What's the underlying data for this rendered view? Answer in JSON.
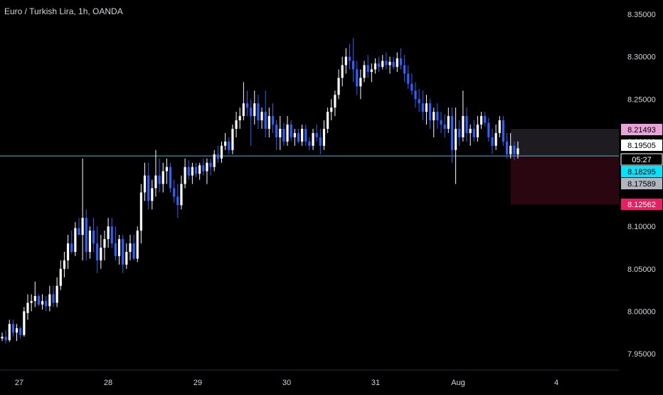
{
  "header": {
    "title": "Euro / Turkish Lira, 1h, OANDA"
  },
  "colors": {
    "background": "#000000",
    "up_candle": "#ffffff",
    "down_candle": "#2962ff",
    "horizontal_line": "#26c6da",
    "zone_upper": "#1e1b21",
    "zone_lower": "#2a0610",
    "tag_pink": "#e8a3d8",
    "tag_white": "#ffffff",
    "tag_cyan": "#00e5ff",
    "tag_gray": "#b2b5be",
    "tag_red": "#e91e63"
  },
  "chart_data": {
    "type": "candlestick",
    "title": "Euro / Turkish Lira, 1h, OANDA",
    "ylim": [
      7.92,
      8.36
    ],
    "xlim": [
      26.95,
      4.55
    ],
    "x_ticks": [
      "27",
      "28",
      "29",
      "30",
      "31",
      "Aug",
      "4"
    ],
    "y_ticks": [
      "8.35000",
      "8.30000",
      "8.25000",
      "8.20000",
      "8.15000",
      "8.10000",
      "8.05000",
      "8.00000",
      "7.95000"
    ],
    "y_tick_values": [
      8.35,
      8.3,
      8.25,
      8.2,
      8.15,
      8.1,
      8.05,
      8.0,
      7.95
    ],
    "horizontal_line": 8.183,
    "price_labels": [
      {
        "text": "8.21493",
        "value": 8.21493,
        "style": "pink"
      },
      {
        "text": "8.19505",
        "value": 8.19505,
        "style": "white"
      },
      {
        "text": "05:27",
        "value": 8.1835,
        "style": "white-sub"
      },
      {
        "text": "8.18295",
        "value": 8.18295,
        "style": "cyan"
      },
      {
        "text": "8.17589",
        "value": 8.17589,
        "style": "gray"
      },
      {
        "text": "8.12562",
        "value": 8.12562,
        "style": "red"
      }
    ],
    "zones": [
      {
        "name": "target",
        "top": 8.21493,
        "bottom": 8.18295
      },
      {
        "name": "stop",
        "top": 8.18295,
        "bottom": 8.12562
      }
    ],
    "candles": [
      [
        7.968,
        7.975,
        7.965,
        7.97
      ],
      [
        7.97,
        7.978,
        7.962,
        7.966
      ],
      [
        7.966,
        7.99,
        7.964,
        7.985
      ],
      [
        7.985,
        7.99,
        7.97,
        7.975
      ],
      [
        7.975,
        7.985,
        7.965,
        7.98
      ],
      [
        7.98,
        7.982,
        7.968,
        7.972
      ],
      [
        7.972,
        8.005,
        7.97,
        8.0
      ],
      [
        7.998,
        8.02,
        7.99,
        8.01
      ],
      [
        8.01,
        8.02,
        8.0,
        8.012
      ],
      [
        8.012,
        8.035,
        8.005,
        8.018
      ],
      [
        8.018,
        8.02,
        8.006,
        8.008
      ],
      [
        8.008,
        8.02,
        8.002,
        8.012
      ],
      [
        8.012,
        8.018,
        8.0,
        8.006
      ],
      [
        8.006,
        8.03,
        8.0,
        8.02
      ],
      [
        8.02,
        8.03,
        8.005,
        8.01
      ],
      [
        8.01,
        8.04,
        8.005,
        8.03
      ],
      [
        8.03,
        8.06,
        8.025,
        8.05
      ],
      [
        8.05,
        8.07,
        8.04,
        8.06
      ],
      [
        8.06,
        8.09,
        8.05,
        8.08
      ],
      [
        8.08,
        8.095,
        8.068,
        8.07
      ],
      [
        8.07,
        8.105,
        8.065,
        8.098
      ],
      [
        8.098,
        8.11,
        8.09,
        8.09
      ],
      [
        8.09,
        8.18,
        8.06,
        8.11
      ],
      [
        8.11,
        8.12,
        8.06,
        8.07
      ],
      [
        8.07,
        8.1,
        8.062,
        8.095
      ],
      [
        8.095,
        8.11,
        8.07,
        8.08
      ],
      [
        8.08,
        8.1,
        8.045,
        8.06
      ],
      [
        8.06,
        8.09,
        8.05,
        8.075
      ],
      [
        8.075,
        8.095,
        8.06,
        8.085
      ],
      [
        8.085,
        8.11,
        8.075,
        8.1
      ],
      [
        8.1,
        8.11,
        8.075,
        8.08
      ],
      [
        8.08,
        8.1,
        8.06,
        8.065
      ],
      [
        8.065,
        8.09,
        8.055,
        8.085
      ],
      [
        8.085,
        8.09,
        8.045,
        8.055
      ],
      [
        8.055,
        8.08,
        8.05,
        8.07
      ],
      [
        8.07,
        8.09,
        8.06,
        8.08
      ],
      [
        8.08,
        8.09,
        8.06,
        8.062
      ],
      [
        8.062,
        8.1,
        8.058,
        8.095
      ],
      [
        8.095,
        8.15,
        8.08,
        8.14
      ],
      [
        8.14,
        8.175,
        8.13,
        8.16
      ],
      [
        8.16,
        8.175,
        8.12,
        8.13
      ],
      [
        8.13,
        8.155,
        8.12,
        8.145
      ],
      [
        8.145,
        8.19,
        8.135,
        8.16
      ],
      [
        8.16,
        8.18,
        8.14,
        8.15
      ],
      [
        8.15,
        8.175,
        8.14,
        8.165
      ],
      [
        8.165,
        8.18,
        8.15,
        8.17
      ],
      [
        8.17,
        8.175,
        8.14,
        8.145
      ],
      [
        8.145,
        8.155,
        8.128,
        8.135
      ],
      [
        8.135,
        8.15,
        8.11,
        8.125
      ],
      [
        8.125,
        8.16,
        8.12,
        8.15
      ],
      [
        8.15,
        8.18,
        8.145,
        8.17
      ],
      [
        8.17,
        8.178,
        8.155,
        8.16
      ],
      [
        8.16,
        8.175,
        8.15,
        8.17
      ],
      [
        8.17,
        8.175,
        8.158,
        8.162
      ],
      [
        8.162,
        8.175,
        8.155,
        8.172
      ],
      [
        8.172,
        8.18,
        8.16,
        8.165
      ],
      [
        8.165,
        8.18,
        8.15,
        8.175
      ],
      [
        8.175,
        8.18,
        8.16,
        8.17
      ],
      [
        8.17,
        8.19,
        8.165,
        8.185
      ],
      [
        8.185,
        8.195,
        8.175,
        8.18
      ],
      [
        8.18,
        8.2,
        8.175,
        8.195
      ],
      [
        8.195,
        8.21,
        8.19,
        8.2
      ],
      [
        8.2,
        8.205,
        8.185,
        8.19
      ],
      [
        8.19,
        8.22,
        8.185,
        8.215
      ],
      [
        8.215,
        8.235,
        8.205,
        8.225
      ],
      [
        8.225,
        8.24,
        8.215,
        8.23
      ],
      [
        8.23,
        8.27,
        8.225,
        8.245
      ],
      [
        8.245,
        8.26,
        8.23,
        8.24
      ],
      [
        8.24,
        8.25,
        8.195,
        8.23
      ],
      [
        8.23,
        8.26,
        8.22,
        8.245
      ],
      [
        8.245,
        8.255,
        8.215,
        8.225
      ],
      [
        8.225,
        8.24,
        8.215,
        8.235
      ],
      [
        8.235,
        8.26,
        8.205,
        8.215
      ],
      [
        8.215,
        8.24,
        8.205,
        8.23
      ],
      [
        8.23,
        8.245,
        8.21,
        8.22
      ],
      [
        8.22,
        8.225,
        8.19,
        8.205
      ],
      [
        8.205,
        8.23,
        8.19,
        8.215
      ],
      [
        8.215,
        8.222,
        8.195,
        8.2
      ],
      [
        8.2,
        8.23,
        8.195,
        8.22
      ],
      [
        8.22,
        8.225,
        8.2,
        8.205
      ],
      [
        8.205,
        8.215,
        8.195,
        8.21
      ],
      [
        8.21,
        8.215,
        8.198,
        8.2
      ],
      [
        8.2,
        8.22,
        8.195,
        8.215
      ],
      [
        8.215,
        8.22,
        8.195,
        8.2
      ],
      [
        8.2,
        8.205,
        8.19,
        8.195
      ],
      [
        8.195,
        8.215,
        8.19,
        8.21
      ],
      [
        8.21,
        8.22,
        8.2,
        8.205
      ],
      [
        8.205,
        8.215,
        8.185,
        8.195
      ],
      [
        8.195,
        8.225,
        8.19,
        8.215
      ],
      [
        8.215,
        8.24,
        8.21,
        8.235
      ],
      [
        8.235,
        8.25,
        8.225,
        8.24
      ],
      [
        8.24,
        8.26,
        8.23,
        8.255
      ],
      [
        8.255,
        8.285,
        8.25,
        8.275
      ],
      [
        8.275,
        8.3,
        8.265,
        8.29
      ],
      [
        8.29,
        8.31,
        8.28,
        8.3
      ],
      [
        8.3,
        8.315,
        8.285,
        8.295
      ],
      [
        8.295,
        8.322,
        8.27,
        8.285
      ],
      [
        8.285,
        8.295,
        8.255,
        8.265
      ],
      [
        8.265,
        8.285,
        8.25,
        8.275
      ],
      [
        8.275,
        8.295,
        8.27,
        8.29
      ],
      [
        8.29,
        8.302,
        8.275,
        8.282
      ],
      [
        8.282,
        8.292,
        8.27,
        8.285
      ],
      [
        8.285,
        8.298,
        8.28,
        8.292
      ],
      [
        8.292,
        8.3,
        8.282,
        8.288
      ],
      [
        8.288,
        8.302,
        8.285,
        8.295
      ],
      [
        8.295,
        8.305,
        8.285,
        8.29
      ],
      [
        8.29,
        8.3,
        8.28,
        8.294
      ],
      [
        8.294,
        8.3,
        8.285,
        8.288
      ],
      [
        8.288,
        8.305,
        8.282,
        8.298
      ],
      [
        8.298,
        8.31,
        8.285,
        8.29
      ],
      [
        8.29,
        8.302,
        8.27,
        8.28
      ],
      [
        8.28,
        8.29,
        8.262,
        8.268
      ],
      [
        8.268,
        8.28,
        8.255,
        8.26
      ],
      [
        8.26,
        8.27,
        8.24,
        8.25
      ],
      [
        8.25,
        8.262,
        8.235,
        8.245
      ],
      [
        8.245,
        8.26,
        8.225,
        8.235
      ],
      [
        8.235,
        8.255,
        8.22,
        8.245
      ],
      [
        8.245,
        8.25,
        8.215,
        8.225
      ],
      [
        8.225,
        8.24,
        8.205,
        8.235
      ],
      [
        8.235,
        8.245,
        8.215,
        8.225
      ],
      [
        8.225,
        8.235,
        8.21,
        8.22
      ],
      [
        8.22,
        8.232,
        8.205,
        8.215
      ],
      [
        8.215,
        8.24,
        8.21,
        8.23
      ],
      [
        8.23,
        8.24,
        8.175,
        8.19
      ],
      [
        8.19,
        8.24,
        8.15,
        8.215
      ],
      [
        8.215,
        8.225,
        8.195,
        8.205
      ],
      [
        8.205,
        8.26,
        8.2,
        8.23
      ],
      [
        8.23,
        8.24,
        8.2,
        8.21
      ],
      [
        8.21,
        8.22,
        8.195,
        8.215
      ],
      [
        8.215,
        8.225,
        8.2,
        8.205
      ],
      [
        8.205,
        8.23,
        8.2,
        8.22
      ],
      [
        8.22,
        8.235,
        8.215,
        8.23
      ],
      [
        8.23,
        8.235,
        8.218,
        8.222
      ],
      [
        8.222,
        8.228,
        8.2,
        8.205
      ],
      [
        8.205,
        8.215,
        8.185,
        8.195
      ],
      [
        8.195,
        8.22,
        8.19,
        8.21
      ],
      [
        8.21,
        8.23,
        8.205,
        8.225
      ],
      [
        8.225,
        8.23,
        8.195,
        8.2
      ],
      [
        8.2,
        8.21,
        8.18,
        8.185
      ],
      [
        8.185,
        8.21,
        8.18,
        8.195
      ],
      [
        8.195,
        8.2,
        8.178,
        8.185
      ],
      [
        8.185,
        8.2,
        8.18,
        8.192
      ]
    ]
  }
}
